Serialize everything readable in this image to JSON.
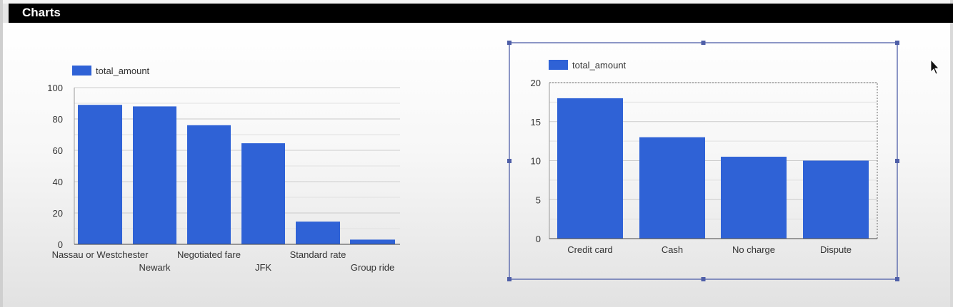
{
  "header": {
    "title": "Charts"
  },
  "chart_data": [
    {
      "type": "bar",
      "legend": [
        "total_amount"
      ],
      "legend_position": "top-left",
      "categories": [
        "Nassau or Westchester",
        "Newark",
        "Negotiated fare",
        "JFK",
        "Standard rate",
        "Group ride"
      ],
      "series": [
        {
          "name": "total_amount",
          "values": [
            89,
            88,
            76,
            64.5,
            14.5,
            3
          ]
        }
      ],
      "yticks": [
        "0",
        "20",
        "40",
        "60",
        "80",
        "100"
      ],
      "ylim": [
        0,
        100
      ],
      "grid": true,
      "colors": {
        "bar": "#2f62d6",
        "grid": "#d4d4d4",
        "text": "#333333"
      }
    },
    {
      "type": "bar",
      "legend": [
        "total_amount"
      ],
      "legend_position": "top-left",
      "categories": [
        "Credit card",
        "Cash",
        "No charge",
        "Dispute"
      ],
      "series": [
        {
          "name": "total_amount",
          "values": [
            18,
            13,
            10.5,
            10
          ]
        }
      ],
      "yticks": [
        "0",
        "5",
        "10",
        "15",
        "20"
      ],
      "ylim": [
        0,
        20
      ],
      "grid": true,
      "selected": true,
      "colors": {
        "bar": "#2f62d6",
        "grid": "#d4d4d4",
        "text": "#333333",
        "selection": "#4f5fa8"
      }
    }
  ]
}
